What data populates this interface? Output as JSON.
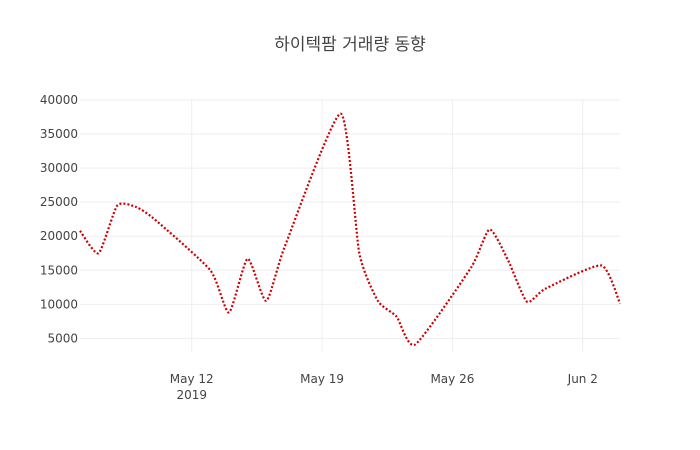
{
  "chart_data": {
    "type": "line",
    "title": "하이텍팜 거래량 동향",
    "xlabel": "",
    "ylabel": "",
    "xlim": [
      "2019-05-06",
      "2019-06-04"
    ],
    "ylim": [
      3000,
      40000
    ],
    "x_ticks": [
      {
        "date": "2019-05-12",
        "label": "May 12",
        "sublabel": "2019"
      },
      {
        "date": "2019-05-19",
        "label": "May 19",
        "sublabel": ""
      },
      {
        "date": "2019-05-26",
        "label": "May 26",
        "sublabel": ""
      },
      {
        "date": "2019-06-02",
        "label": "Jun 2",
        "sublabel": ""
      }
    ],
    "y_ticks": [
      5000,
      10000,
      15000,
      20000,
      25000,
      30000,
      35000,
      40000
    ],
    "grid": true,
    "legend": "none",
    "series": [
      {
        "color": "#cc0000",
        "line_style": "dotted",
        "shape": "spline",
        "x": [
          "2019-05-06",
          "2019-05-07",
          "2019-05-08",
          "2019-05-09",
          "2019-05-10",
          "2019-05-13",
          "2019-05-14",
          "2019-05-15",
          "2019-05-16",
          "2019-05-17",
          "2019-05-20",
          "2019-05-21",
          "2019-05-22",
          "2019-05-23",
          "2019-05-24",
          "2019-05-27",
          "2019-05-28",
          "2019-05-29",
          "2019-05-30",
          "2019-05-31",
          "2019-06-03",
          "2019-06-04"
        ],
        "values": [
          20800,
          17500,
          24500,
          24300,
          22500,
          15000,
          8800,
          16700,
          10500,
          18500,
          38000,
          17500,
          10500,
          8200,
          4100,
          15400,
          21000,
          16400,
          10400,
          12300,
          15700,
          10100
        ]
      }
    ]
  }
}
